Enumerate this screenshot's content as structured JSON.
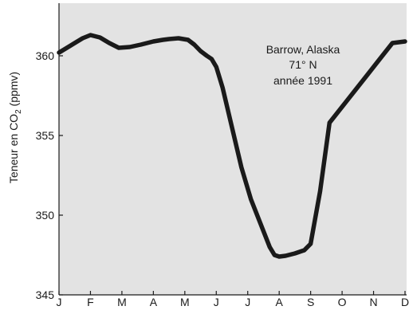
{
  "chart_data": {
    "type": "line",
    "ylabel_main": "Teneur en CO",
    "ylabel_sub": "2",
    "ylabel_unit": " (ppmv)",
    "ylim": [
      345,
      365
    ],
    "xlim": [
      0,
      11
    ],
    "grid": false,
    "colors": {
      "plot_bg": "#e3e3e3",
      "line": "#1a1a1a",
      "axis": "#1a1a1a"
    },
    "y_ticks": [
      {
        "value": 345,
        "label": "345"
      },
      {
        "value": 350,
        "label": "350"
      },
      {
        "value": 355,
        "label": "355"
      },
      {
        "value": 360,
        "label": "360"
      }
    ],
    "x_ticks": [
      {
        "value": 0,
        "label": "J"
      },
      {
        "value": 1,
        "label": "F"
      },
      {
        "value": 2,
        "label": "M"
      },
      {
        "value": 3,
        "label": "A"
      },
      {
        "value": 4,
        "label": "M"
      },
      {
        "value": 5,
        "label": "J"
      },
      {
        "value": 6,
        "label": "J"
      },
      {
        "value": 7,
        "label": "A"
      },
      {
        "value": 8,
        "label": "S"
      },
      {
        "value": 9,
        "label": "O"
      },
      {
        "value": 10,
        "label": "N"
      },
      {
        "value": 11,
        "label": "D"
      }
    ],
    "annotation": [
      "Barrow, Alaska",
      "71° N",
      "année 1991"
    ],
    "series": [
      {
        "x": [
          0,
          0.25,
          0.5,
          0.75,
          1.0,
          1.3,
          1.6,
          1.9,
          2.25,
          2.6,
          3.0,
          3.3,
          3.5,
          3.8,
          4.1,
          4.3,
          4.5,
          4.7,
          4.85,
          5.0,
          5.2,
          5.5,
          5.8,
          6.1,
          6.4,
          6.7,
          6.85,
          7.0,
          7.2,
          7.5,
          7.8,
          8.0,
          8.3,
          8.6,
          9.0,
          9.4,
          9.8,
          10.2,
          10.6,
          11.0
        ],
        "y": [
          360.2,
          360.5,
          360.8,
          361.1,
          361.3,
          361.15,
          360.8,
          360.5,
          360.55,
          360.7,
          360.9,
          361.0,
          361.05,
          361.1,
          361.0,
          360.7,
          360.3,
          360.0,
          359.8,
          359.3,
          358.0,
          355.5,
          353.0,
          351.0,
          349.5,
          348.0,
          347.5,
          347.4,
          347.45,
          347.6,
          347.8,
          348.2,
          351.5,
          355.8,
          356.8,
          357.8,
          358.8,
          359.8,
          360.8,
          360.9
        ]
      }
    ]
  }
}
